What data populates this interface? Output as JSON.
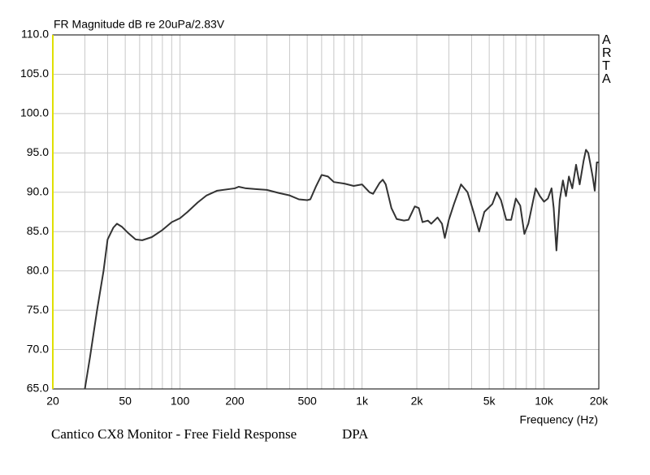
{
  "chart_data": {
    "type": "line",
    "y_label": "FR Magnitude dB re 20uPa/2.83V",
    "x_label": "Frequency (Hz)",
    "watermark": "ARTA",
    "footer": "Cantico CX8 Monitor - Free Field Response",
    "footer_right": "DPA",
    "log_x": true,
    "grid": true,
    "xlim": [
      20,
      20000
    ],
    "ylim": [
      65,
      110
    ],
    "xticks": [
      20,
      50,
      100,
      200,
      500,
      {
        "value": 1000,
        "label": "1k"
      },
      {
        "value": 2000,
        "label": "2k"
      },
      {
        "value": 5000,
        "label": "5k"
      },
      {
        "value": 10000,
        "label": "10k"
      },
      {
        "value": 20000,
        "label": "20k"
      }
    ],
    "xgrid": [
      30,
      40,
      60,
      70,
      80,
      90,
      300,
      400,
      600,
      700,
      800,
      900,
      3000,
      4000,
      6000,
      7000,
      8000,
      9000
    ],
    "yticks": [
      {
        "value": 65,
        "label": "65.0"
      },
      {
        "value": 70,
        "label": "70.0"
      },
      {
        "value": 75,
        "label": "75.0"
      },
      {
        "value": 80,
        "label": "80.0"
      },
      {
        "value": 85,
        "label": "85.0"
      },
      {
        "value": 90,
        "label": "90.0"
      },
      {
        "value": 95,
        "label": "95.0"
      },
      {
        "value": 100,
        "label": "100.0"
      },
      {
        "value": 105,
        "label": "105.0"
      },
      {
        "value": 110,
        "label": "110.0"
      }
    ],
    "series": [
      {
        "color": "#333333",
        "x": [
          30,
          32,
          35,
          38,
          40,
          43,
          45,
          48,
          52,
          57,
          62,
          70,
          80,
          90,
          100,
          110,
          125,
          140,
          160,
          200,
          210,
          230,
          260,
          300,
          350,
          400,
          450,
          500,
          520,
          560,
          600,
          650,
          700,
          800,
          900,
          1000,
          1100,
          1150,
          1250,
          1300,
          1350,
          1450,
          1550,
          1700,
          1800,
          1950,
          2050,
          2150,
          2300,
          2400,
          2600,
          2750,
          2850,
          3000,
          3200,
          3500,
          3800,
          4100,
          4400,
          4700,
          5200,
          5500,
          5800,
          6200,
          6600,
          7000,
          7400,
          7800,
          8200,
          9000,
          9500,
          10000,
          10500,
          11000,
          11300,
          11700,
          12200,
          12700,
          13200,
          13700,
          14300,
          15000,
          15700,
          16500,
          17000,
          17500,
          18000,
          18500,
          19000,
          19500,
          20000
        ],
        "values": [
          65,
          69,
          75,
          80,
          84,
          85.5,
          86,
          85.6,
          84.8,
          84,
          83.9,
          84.3,
          85.2,
          86.2,
          86.7,
          87.5,
          88.7,
          89.6,
          90.2,
          90.5,
          90.7,
          90.5,
          90.4,
          90.3,
          89.9,
          89.6,
          89.1,
          89,
          89.1,
          90.8,
          92.2,
          92,
          91.3,
          91.1,
          90.8,
          91,
          90,
          89.8,
          91.2,
          91.6,
          91,
          88,
          86.6,
          86.4,
          86.5,
          88.2,
          88,
          86.2,
          86.4,
          86,
          86.8,
          86,
          84.2,
          86.5,
          88.5,
          91,
          90,
          87.5,
          85,
          87.5,
          88.5,
          90,
          89,
          86.5,
          86.5,
          89.2,
          88.3,
          84.7,
          86,
          90.5,
          89.5,
          88.8,
          89.2,
          90.5,
          88,
          82.6,
          89,
          91.5,
          89.5,
          92,
          90.5,
          93.5,
          91,
          94,
          95.4,
          95,
          93.5,
          92,
          90.2,
          93.8,
          93.8
        ]
      }
    ]
  }
}
